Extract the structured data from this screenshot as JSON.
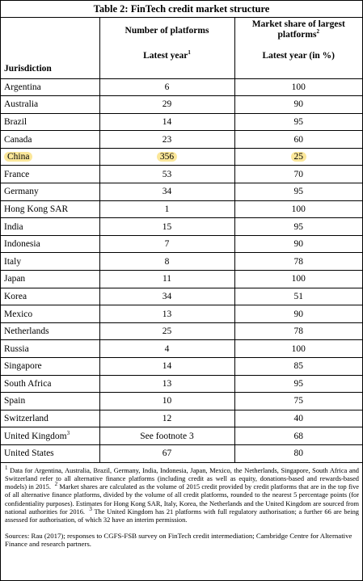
{
  "table": {
    "title": "Table 2: FinTech credit market structure",
    "headers": {
      "jurisdiction": "Jurisdiction",
      "platforms": "Number of platforms",
      "platforms_sub": "Latest year",
      "platforms_sub_sup": "1",
      "share": "Market share of largest platforms",
      "share_sup": "2",
      "share_sub": "Latest year (in %)"
    },
    "rows": [
      {
        "jurisdiction": "Argentina",
        "platforms": "6",
        "share": "100"
      },
      {
        "jurisdiction": "Australia",
        "platforms": "29",
        "share": "90"
      },
      {
        "jurisdiction": "Brazil",
        "platforms": "14",
        "share": "95"
      },
      {
        "jurisdiction": "Canada",
        "platforms": "23",
        "share": "60"
      },
      {
        "jurisdiction": "China",
        "platforms": "356",
        "share": "25",
        "highlight": true
      },
      {
        "jurisdiction": "France",
        "platforms": "53",
        "share": "70"
      },
      {
        "jurisdiction": "Germany",
        "platforms": "34",
        "share": "95"
      },
      {
        "jurisdiction": "Hong Kong SAR",
        "platforms": "1",
        "share": "100"
      },
      {
        "jurisdiction": "India",
        "platforms": "15",
        "share": "95"
      },
      {
        "jurisdiction": "Indonesia",
        "platforms": "7",
        "share": "90"
      },
      {
        "jurisdiction": "Italy",
        "platforms": "8",
        "share": "78"
      },
      {
        "jurisdiction": "Japan",
        "platforms": "11",
        "share": "100"
      },
      {
        "jurisdiction": "Korea",
        "platforms": "34",
        "share": "51"
      },
      {
        "jurisdiction": "Mexico",
        "platforms": "13",
        "share": "90"
      },
      {
        "jurisdiction": "Netherlands",
        "platforms": "25",
        "share": "78"
      },
      {
        "jurisdiction": "Russia",
        "platforms": "4",
        "share": "100"
      },
      {
        "jurisdiction": "Singapore",
        "platforms": "14",
        "share": "85"
      },
      {
        "jurisdiction": "South Africa",
        "platforms": "13",
        "share": "95"
      },
      {
        "jurisdiction": "Spain",
        "platforms": "10",
        "share": "75"
      },
      {
        "jurisdiction": "Switzerland",
        "platforms": "12",
        "share": "40"
      },
      {
        "jurisdiction": "United Kingdom",
        "jurisdiction_sup": "3",
        "platforms": "See footnote 3",
        "share": "68"
      },
      {
        "jurisdiction": "United States",
        "platforms": "67",
        "share": "80"
      }
    ],
    "highlight_color": "#fbe79a"
  },
  "footnotes": {
    "n1_mark": "1",
    "n1": "Data for Argentina, Australia, Brazil, Germany, India, Indonesia, Japan, Mexico, the Netherlands, Singapore, South Africa and Switzerland refer to all alternative finance platforms (including credit as well as equity, donations-based and rewards-based models) in 2015.",
    "n2_mark": "2",
    "n2": "Market shares are calculated as the volume of 2015 credit provided by credit platforms that are in the top five of all alternative finance platforms, divided by the volume of all credit platforms, rounded to the nearest 5 percentage points (for confidentiality purposes). Estimates for Hong Kong SAR, Italy, Korea, the Netherlands and the United Kingdom are sourced from national authorities for 2016.",
    "n3_mark": "3",
    "n3": "The United Kingdom has 21 platforms with full regulatory authorisation; a further 66 are being assessed for authorisation, of which 32 have an interim permission."
  },
  "sources": "Sources: Rau (2017); responses to CGFS-FSB survey on FinTech credit intermediation; Cambridge Centre for Alternative Finance and research partners."
}
